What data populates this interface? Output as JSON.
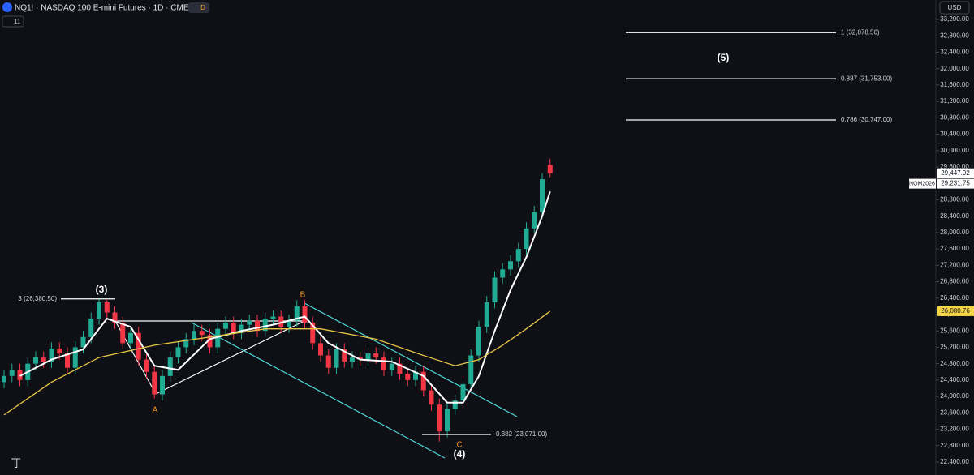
{
  "header": {
    "title": "NQ1! · NASDAQ 100 E-mini Futures · 1D · CME",
    "badge": "D",
    "interval_count": "11",
    "currency": "USD"
  },
  "chart_data": {
    "type": "candlestick",
    "ylim": [
      22400,
      33200
    ],
    "yticks": [
      {
        "value": 22400,
        "label": "22,400.00"
      },
      {
        "value": 22800,
        "label": "22,800.00"
      },
      {
        "value": 23200,
        "label": "23,200.00"
      },
      {
        "value": 23600,
        "label": "23,600.00"
      },
      {
        "value": 24000,
        "label": "24,000.00"
      },
      {
        "value": 24400,
        "label": "24,400.00"
      },
      {
        "value": 24800,
        "label": "24,800.00"
      },
      {
        "value": 25200,
        "label": "25,200.00"
      },
      {
        "value": 25600,
        "label": "25,600.00"
      },
      {
        "value": 26000,
        "label": "26,000.00"
      },
      {
        "value": 26400,
        "label": "26,400.00"
      },
      {
        "value": 26800,
        "label": "26,800.00"
      },
      {
        "value": 27200,
        "label": "27,200.00"
      },
      {
        "value": 27600,
        "label": "27,600.00"
      },
      {
        "value": 28000,
        "label": "28,000.00"
      },
      {
        "value": 28400,
        "label": "28,400.00"
      },
      {
        "value": 28800,
        "label": "28,800.00"
      },
      {
        "value": 29200,
        "label": "29,200.00"
      },
      {
        "value": 29600,
        "label": "29,600.00"
      },
      {
        "value": 30000,
        "label": "30,000.00"
      },
      {
        "value": 30400,
        "label": "30,400.00"
      },
      {
        "value": 30800,
        "label": "30,800.00"
      },
      {
        "value": 31200,
        "label": "31,200.00"
      },
      {
        "value": 31600,
        "label": "31,600.00"
      },
      {
        "value": 32000,
        "label": "32,000.00"
      },
      {
        "value": 32400,
        "label": "32,400.00"
      },
      {
        "value": 32800,
        "label": "32,800.00"
      },
      {
        "value": 33200,
        "label": "33,200.00"
      }
    ],
    "up_color": "#22ab94",
    "down_color": "#f23645",
    "ohlc": {
      "open": [
        24350,
        24500,
        24650,
        24400,
        24800,
        24950,
        24850,
        25170,
        25050,
        24700,
        25200,
        25450,
        25900,
        26300,
        26050,
        25800,
        25300,
        25550,
        24900,
        24600,
        24050,
        24500,
        24950,
        25200,
        25400,
        25600,
        25500,
        25200,
        25650,
        25800,
        25550,
        25750,
        25850,
        25600,
        25900,
        25950,
        25700,
        25850,
        26200,
        25800,
        25300,
        25000,
        24700,
        25150,
        24850,
        24950,
        24900,
        25050,
        24950,
        24650,
        24800,
        24550,
        24400,
        24600,
        24150,
        23800,
        23150,
        23700,
        23900,
        24300,
        25000,
        25700,
        26300,
        26900,
        27100,
        27300,
        27600,
        28100,
        28500,
        29650
      ],
      "high": [
        24650,
        24800,
        24800,
        24950,
        25100,
        25100,
        25320,
        25320,
        25200,
        25350,
        25600,
        26050,
        26380,
        26350,
        26200,
        25950,
        25700,
        25700,
        25050,
        24750,
        24650,
        25100,
        25350,
        25550,
        25750,
        25750,
        25650,
        25800,
        25950,
        25950,
        25900,
        26000,
        26000,
        26050,
        26100,
        26100,
        26000,
        26350,
        26350,
        25950,
        25450,
        25150,
        25300,
        25300,
        25100,
        25100,
        25200,
        25200,
        25100,
        24950,
        24950,
        24700,
        24750,
        24750,
        24300,
        23950,
        23850,
        24050,
        24450,
        25150,
        25850,
        26450,
        27050,
        27250,
        27450,
        27750,
        28250,
        28650,
        29450,
        29800
      ],
      "low": [
        24200,
        24350,
        24250,
        24250,
        24650,
        24700,
        24700,
        24900,
        24550,
        24550,
        25050,
        25300,
        25750,
        25900,
        25650,
        25150,
        25150,
        24750,
        24450,
        23950,
        23900,
        24350,
        24800,
        25050,
        25250,
        25350,
        25050,
        25050,
        25500,
        25400,
        25400,
        25600,
        25450,
        25450,
        25750,
        25550,
        25550,
        25700,
        25650,
        25150,
        24850,
        24550,
        24550,
        24700,
        24700,
        24750,
        24750,
        24800,
        24500,
        24500,
        24400,
        24250,
        24250,
        24000,
        23650,
        22900,
        23000,
        23550,
        23750,
        24150,
        24850,
        25550,
        26150,
        26750,
        26950,
        27150,
        27450,
        28000,
        28350,
        29350
      ],
      "close": [
        24500,
        24650,
        24400,
        24800,
        24950,
        24850,
        25170,
        25050,
        24700,
        25200,
        25450,
        25900,
        26300,
        26050,
        25800,
        25300,
        25550,
        24900,
        24600,
        24050,
        24500,
        24950,
        25200,
        25400,
        25600,
        25500,
        25200,
        25650,
        25800,
        25550,
        25750,
        25850,
        25600,
        25900,
        25950,
        25700,
        25850,
        26200,
        25800,
        25300,
        25000,
        24700,
        25150,
        24850,
        24950,
        24900,
        25050,
        24950,
        24650,
        24800,
        24550,
        24400,
        24600,
        24150,
        23800,
        23150,
        23700,
        23900,
        24300,
        25000,
        25700,
        26300,
        26900,
        27100,
        27300,
        27600,
        28100,
        28500,
        29300,
        29447.92
      ]
    },
    "series": [
      {
        "color": "#ffffff",
        "x": [
          2,
          6,
          10,
          13,
          16,
          19,
          22,
          26,
          30,
          34,
          38,
          41,
          45,
          49,
          53,
          56,
          58,
          60,
          62,
          64,
          66,
          68,
          69
        ],
        "values": [
          24500,
          24900,
          25150,
          25900,
          25700,
          24750,
          24650,
          25400,
          25600,
          25750,
          25950,
          25300,
          24900,
          24850,
          24500,
          23850,
          23850,
          24500,
          25600,
          26600,
          27400,
          28400,
          29000
        ]
      },
      {
        "color": "#e8c547",
        "x": [
          0,
          6,
          12,
          19,
          26,
          33,
          40,
          47,
          53,
          57,
          60,
          63,
          66,
          69
        ],
        "values": [
          23550,
          24350,
          24950,
          25250,
          25450,
          25650,
          25650,
          25400,
          25000,
          24750,
          24900,
          25250,
          25650,
          26080.76
        ]
      }
    ],
    "price_labels": [
      {
        "value": 29447.92,
        "label": "29,447.92"
      },
      {
        "value": 29231.75,
        "label": "29,231.75",
        "tag": "NQM2026"
      },
      {
        "value": 26080.76,
        "label": "26,080.76"
      }
    ],
    "fib_levels": [
      {
        "value": 32878.5,
        "label": "1 (32,878.50)"
      },
      {
        "value": 31753,
        "label": "0.887 (31,753.00)"
      },
      {
        "value": 30747,
        "label": "0.786 (30,747.00)"
      },
      {
        "value": 23071,
        "label": "0.382 (23,071.00)"
      },
      {
        "value": 26380.5,
        "label": "3 (26,380.50)"
      }
    ],
    "annotations": [
      "(3)",
      "(5)",
      "(4)",
      "A",
      "B",
      "C"
    ]
  }
}
